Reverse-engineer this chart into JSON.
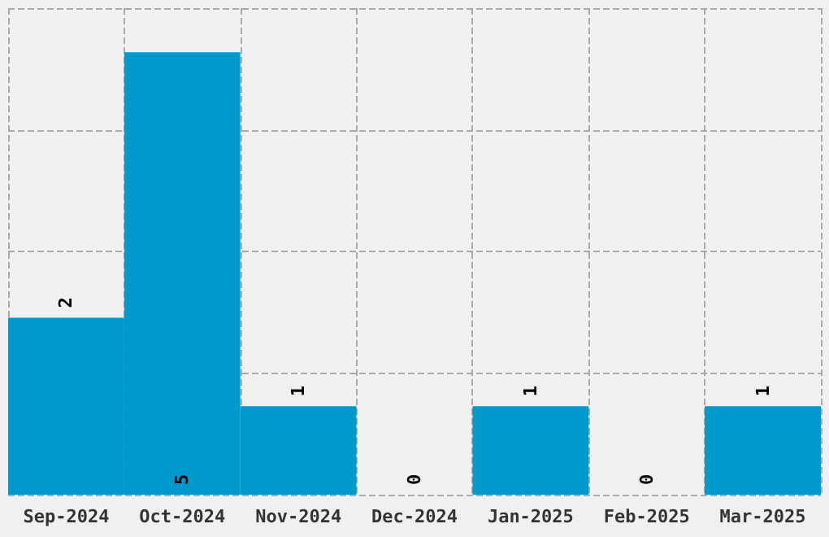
{
  "chart_data": {
    "type": "bar",
    "categories": [
      "Sep-2024",
      "Oct-2024",
      "Nov-2024",
      "Dec-2024",
      "Jan-2025",
      "Feb-2025",
      "Mar-2025"
    ],
    "values": [
      2,
      5,
      1,
      0,
      1,
      0,
      1
    ],
    "color": "#0099cc",
    "ylim": [
      0,
      5.5
    ],
    "yticks": [
      {
        "value": 0,
        "label": null
      },
      {
        "value": 1.375,
        "label": null
      },
      {
        "value": 2.75,
        "label": null
      },
      {
        "value": 4.125,
        "label": null
      },
      {
        "value": 5.5,
        "label": null
      }
    ],
    "grid": true,
    "data_labels": true,
    "tick_labels": "x"
  }
}
